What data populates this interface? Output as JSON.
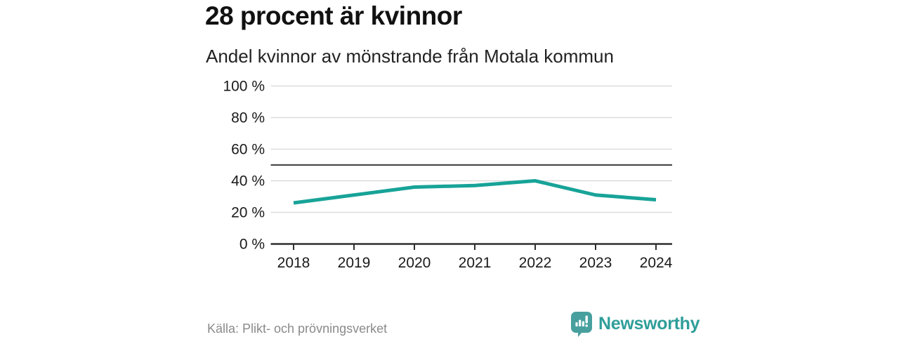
{
  "header": {
    "title": "28 procent är kvinnor",
    "subtitle": "Andel kvinnor av mönstrande från Motala kommun"
  },
  "chart_data": {
    "type": "line",
    "title": "28 procent är kvinnor",
    "subtitle": "Andel kvinnor av mönstrande från Motala kommun",
    "x": [
      2018,
      2019,
      2020,
      2021,
      2022,
      2023,
      2024
    ],
    "series": [
      {
        "name": "Andel kvinnor av mönstrande",
        "color": "#17a398",
        "values": [
          26,
          31,
          36,
          37,
          40,
          31,
          28
        ]
      }
    ],
    "xlabel": "",
    "ylabel": "",
    "ylim": [
      0,
      100
    ],
    "ytick_step": 20,
    "ytick_suffix": " %",
    "reference_line": 50,
    "grid": true,
    "legend": "none"
  },
  "footer": {
    "source": "Källa: Plikt- och prövningsverket",
    "brand_name": "Newsworthy"
  },
  "colors": {
    "line": "#17a398",
    "grid": "#dcdcdc",
    "reference_line": "#4a4a4a",
    "axis": "#2e2e2e",
    "tick_text": "#1a1a1a",
    "source_text": "#8a8a8a",
    "brand_icon": "#47a09e",
    "brand_text": "#2f9e99",
    "background": "#ffffff"
  }
}
